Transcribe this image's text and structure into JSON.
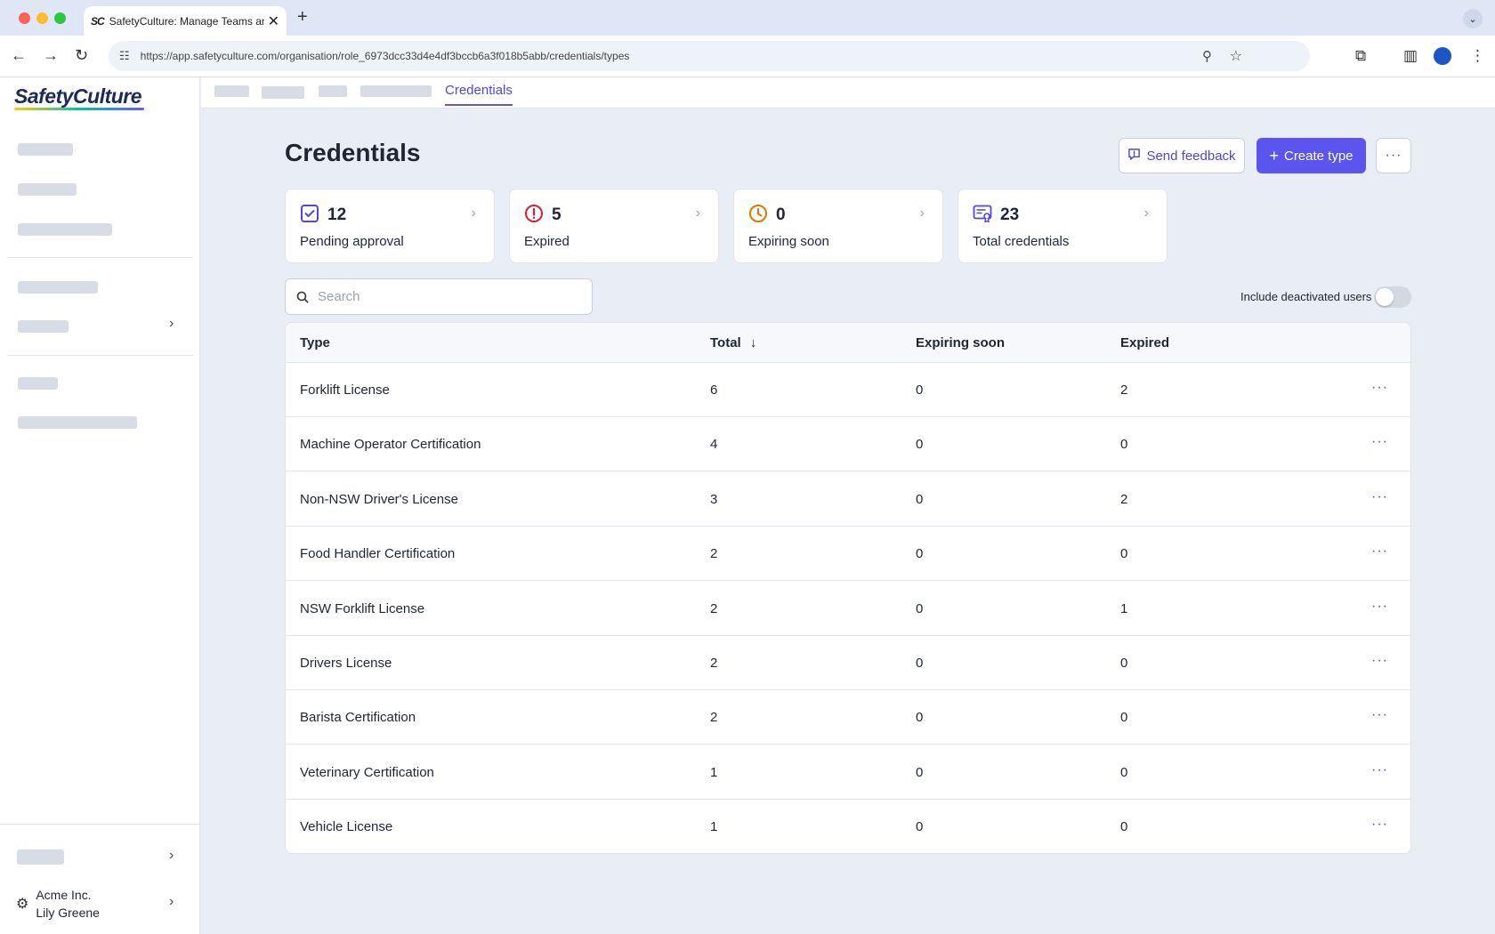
{
  "browser": {
    "tab_title": "SafetyCulture: Manage Teams and...",
    "tab_favicon": "SC",
    "url": "https://app.safetyculture.com/organisation/role_6973dcc33d4e4df3bccb6a3f018b5abb/credentials/types"
  },
  "sidebar": {
    "logo": "SafetyCulture",
    "org_name": "Acme Inc.",
    "user_name": "Lily Greene"
  },
  "tabs": {
    "active": "Credentials"
  },
  "page": {
    "title": "Credentials",
    "send_feedback": "Send feedback",
    "create_type": "Create type",
    "more": "···"
  },
  "stats": [
    {
      "value": "12",
      "label": "Pending approval",
      "icon": "check-square-icon",
      "color": "#4f46e5"
    },
    {
      "value": "5",
      "label": "Expired",
      "icon": "alert-circle-icon",
      "color": "#d1242f"
    },
    {
      "value": "0",
      "label": "Expiring soon",
      "icon": "clock-icon",
      "color": "#d97706"
    },
    {
      "value": "23",
      "label": "Total credentials",
      "icon": "certificate-icon",
      "color": "#4f46e5"
    }
  ],
  "search": {
    "placeholder": "Search"
  },
  "toggle": {
    "label": "Include deactivated users",
    "on": false
  },
  "table": {
    "headers": {
      "type": "Type",
      "total": "Total",
      "expiring": "Expiring soon",
      "expired": "Expired"
    },
    "sort_icon": "↓",
    "rows": [
      {
        "type": "Forklift License",
        "total": "6",
        "expiring": "0",
        "expired": "2"
      },
      {
        "type": "Machine Operator Certification",
        "total": "4",
        "expiring": "0",
        "expired": "0"
      },
      {
        "type": "Non-NSW Driver's License",
        "total": "3",
        "expiring": "0",
        "expired": "2"
      },
      {
        "type": "Food Handler Certification",
        "total": "2",
        "expiring": "0",
        "expired": "0"
      },
      {
        "type": "NSW Forklift License",
        "total": "2",
        "expiring": "0",
        "expired": "1"
      },
      {
        "type": "Drivers License",
        "total": "2",
        "expiring": "0",
        "expired": "0"
      },
      {
        "type": "Barista Certification",
        "total": "2",
        "expiring": "0",
        "expired": "0"
      },
      {
        "type": "Veterinary Certification",
        "total": "1",
        "expiring": "0",
        "expired": "0"
      },
      {
        "type": "Vehicle License",
        "total": "1",
        "expiring": "0",
        "expired": "0"
      }
    ]
  }
}
